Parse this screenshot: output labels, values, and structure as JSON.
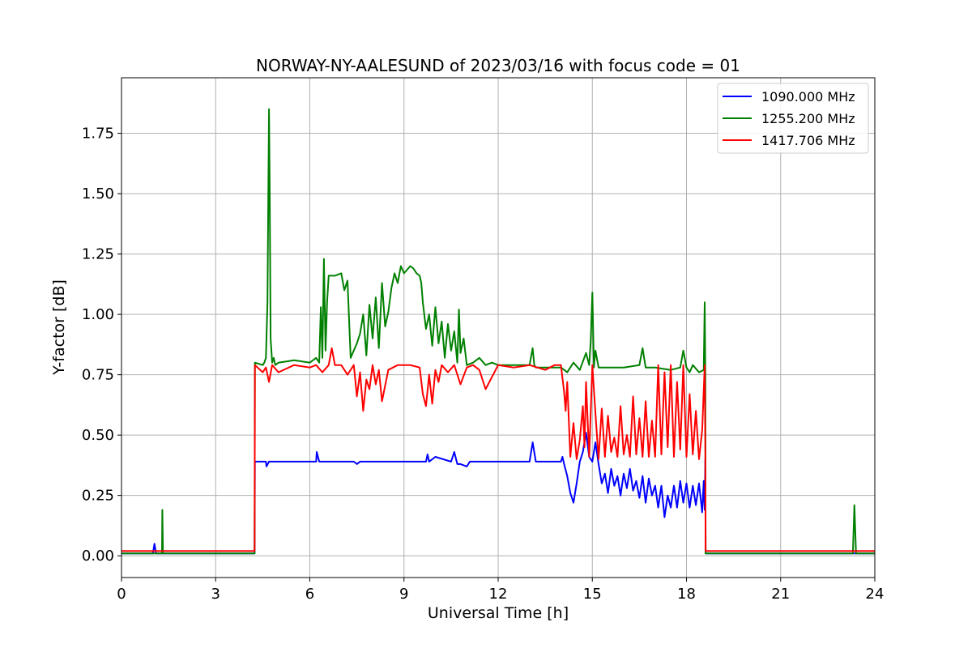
{
  "chart_data": {
    "type": "line",
    "title": "NORWAY-NY-AALESUND of 2023/03/16 with focus code = 01",
    "xlabel": "Universal Time [h]",
    "ylabel": "Y-factor [dB]",
    "xlim": [
      0,
      24
    ],
    "ylim": [
      -0.09,
      1.98
    ],
    "xticks": [
      0,
      3,
      6,
      9,
      12,
      15,
      18,
      21,
      24
    ],
    "xtick_labels": [
      "0",
      "3",
      "6",
      "9",
      "12",
      "15",
      "18",
      "21",
      "24"
    ],
    "yticks": [
      0.0,
      0.25,
      0.5,
      0.75,
      1.0,
      1.25,
      1.5,
      1.75
    ],
    "ytick_labels": [
      "0.00",
      "0.25",
      "0.50",
      "0.75",
      "1.00",
      "1.25",
      "1.50",
      "1.75"
    ],
    "grid": true,
    "legend_position": "top-right",
    "series": [
      {
        "name": "1090.000 MHz",
        "color": "#0000ff",
        "x": [
          0,
          0.5,
          1.0,
          1.05,
          1.1,
          1.2,
          2.0,
          3.0,
          3.9,
          4.0,
          4.24,
          4.25,
          4.5,
          4.6,
          4.62,
          4.7,
          6.0,
          6.2,
          6.22,
          6.3,
          7.4,
          7.5,
          7.6,
          9.0,
          9.7,
          9.75,
          9.8,
          10.0,
          10.5,
          10.6,
          10.7,
          10.8,
          11.0,
          11.1,
          12.0,
          13.0,
          13.1,
          13.2,
          13.5,
          14.0,
          14.05,
          14.1,
          14.2,
          14.3,
          14.4,
          14.5,
          14.6,
          14.7,
          14.8,
          14.9,
          15.0,
          15.1,
          15.2,
          15.3,
          15.4,
          15.5,
          15.6,
          15.7,
          15.8,
          15.9,
          16.0,
          16.1,
          16.2,
          16.3,
          16.4,
          16.5,
          16.6,
          16.7,
          16.8,
          16.9,
          17.0,
          17.1,
          17.2,
          17.3,
          17.4,
          17.5,
          17.6,
          17.7,
          17.8,
          17.9,
          18.0,
          18.1,
          18.2,
          18.3,
          18.4,
          18.5,
          18.55,
          18.58,
          18.6,
          18.61,
          19.0,
          21.0,
          24.0
        ],
        "y": [
          0.01,
          0.01,
          0.01,
          0.05,
          0.01,
          0.01,
          0.01,
          0.01,
          0.01,
          0.01,
          0.01,
          0.39,
          0.39,
          0.39,
          0.37,
          0.39,
          0.39,
          0.39,
          0.43,
          0.39,
          0.39,
          0.38,
          0.39,
          0.39,
          0.39,
          0.42,
          0.39,
          0.41,
          0.39,
          0.43,
          0.38,
          0.38,
          0.37,
          0.39,
          0.39,
          0.39,
          0.47,
          0.39,
          0.39,
          0.39,
          0.41,
          0.38,
          0.33,
          0.26,
          0.22,
          0.3,
          0.39,
          0.43,
          0.51,
          0.41,
          0.39,
          0.47,
          0.38,
          0.3,
          0.34,
          0.26,
          0.36,
          0.29,
          0.33,
          0.25,
          0.34,
          0.28,
          0.36,
          0.27,
          0.31,
          0.24,
          0.33,
          0.22,
          0.32,
          0.25,
          0.29,
          0.2,
          0.29,
          0.16,
          0.25,
          0.2,
          0.29,
          0.2,
          0.31,
          0.22,
          0.3,
          0.2,
          0.29,
          0.21,
          0.3,
          0.18,
          0.31,
          0.19,
          0.4,
          0.01,
          0.01,
          0.01,
          0.01
        ]
      },
      {
        "name": "1255.200 MHz",
        "color": "#008000",
        "x": [
          0,
          1.0,
          1.29,
          1.3,
          1.32,
          1.4,
          3.0,
          4.0,
          4.24,
          4.25,
          4.5,
          4.55,
          4.6,
          4.65,
          4.7,
          4.72,
          4.75,
          4.8,
          4.85,
          4.9,
          5.0,
          5.5,
          6.0,
          6.2,
          6.3,
          6.35,
          6.4,
          6.45,
          6.5,
          6.55,
          6.6,
          6.8,
          7.0,
          7.1,
          7.2,
          7.3,
          7.5,
          7.6,
          7.7,
          7.8,
          7.9,
          8.0,
          8.1,
          8.2,
          8.3,
          8.4,
          8.5,
          8.6,
          8.7,
          8.8,
          8.9,
          9.0,
          9.2,
          9.3,
          9.4,
          9.5,
          9.55,
          9.6,
          9.7,
          9.8,
          9.9,
          10.0,
          10.1,
          10.2,
          10.3,
          10.4,
          10.5,
          10.6,
          10.7,
          10.75,
          10.8,
          10.9,
          11.0,
          11.2,
          11.4,
          11.6,
          11.8,
          12.0,
          12.5,
          13.0,
          13.1,
          13.15,
          13.2,
          13.5,
          14.0,
          14.2,
          14.4,
          14.6,
          14.8,
          14.9,
          14.95,
          15.0,
          15.05,
          15.1,
          15.2,
          15.5,
          16.0,
          16.5,
          16.6,
          16.7,
          17.0,
          17.5,
          17.8,
          17.9,
          18.0,
          18.1,
          18.2,
          18.4,
          18.55,
          18.58,
          18.6,
          18.61,
          19.0,
          21.0,
          23.3,
          23.35,
          23.4,
          24.0
        ],
        "y": [
          0.01,
          0.01,
          0.01,
          0.19,
          0.01,
          0.01,
          0.01,
          0.01,
          0.01,
          0.8,
          0.79,
          0.8,
          0.82,
          1.05,
          1.85,
          1.55,
          0.9,
          0.8,
          0.82,
          0.79,
          0.8,
          0.81,
          0.8,
          0.82,
          0.8,
          1.03,
          0.82,
          1.23,
          0.85,
          1.05,
          1.16,
          1.16,
          1.17,
          1.1,
          1.14,
          0.82,
          0.88,
          0.92,
          1.0,
          0.83,
          1.04,
          0.9,
          1.07,
          0.86,
          1.13,
          0.95,
          1.01,
          1.11,
          1.17,
          1.13,
          1.2,
          1.17,
          1.2,
          1.19,
          1.17,
          1.16,
          1.13,
          1.05,
          0.94,
          1.0,
          0.87,
          1.03,
          0.88,
          0.97,
          0.82,
          0.96,
          0.85,
          0.93,
          0.8,
          1.02,
          0.84,
          0.9,
          0.79,
          0.8,
          0.82,
          0.79,
          0.8,
          0.79,
          0.79,
          0.79,
          0.86,
          0.79,
          0.78,
          0.78,
          0.78,
          0.76,
          0.8,
          0.77,
          0.84,
          0.79,
          0.89,
          1.09,
          0.78,
          0.85,
          0.78,
          0.78,
          0.78,
          0.79,
          0.86,
          0.78,
          0.78,
          0.77,
          0.78,
          0.85,
          0.78,
          0.76,
          0.79,
          0.76,
          0.77,
          1.05,
          0.75,
          0.01,
          0.01,
          0.01,
          0.01,
          0.21,
          0.01,
          0.01
        ]
      },
      {
        "name": "1417.706 MHz",
        "color": "#ff0000",
        "x": [
          0,
          1.0,
          2.0,
          3.0,
          4.0,
          4.24,
          4.25,
          4.5,
          4.6,
          4.7,
          4.8,
          5.0,
          5.5,
          6.0,
          6.2,
          6.4,
          6.6,
          6.7,
          6.8,
          7.0,
          7.2,
          7.4,
          7.5,
          7.6,
          7.7,
          7.8,
          7.9,
          8.0,
          8.1,
          8.2,
          8.3,
          8.5,
          8.8,
          9.2,
          9.5,
          9.6,
          9.7,
          9.8,
          9.9,
          10.0,
          10.1,
          10.2,
          10.4,
          10.6,
          10.8,
          11.0,
          11.2,
          11.4,
          11.6,
          12.0,
          12.5,
          13.0,
          13.5,
          13.8,
          14.0,
          14.1,
          14.15,
          14.2,
          14.3,
          14.4,
          14.5,
          14.6,
          14.7,
          14.75,
          14.8,
          14.9,
          15.0,
          15.1,
          15.2,
          15.3,
          15.4,
          15.5,
          15.6,
          15.7,
          15.8,
          15.9,
          16.0,
          16.1,
          16.2,
          16.3,
          16.4,
          16.5,
          16.6,
          16.7,
          16.8,
          16.9,
          17.0,
          17.1,
          17.2,
          17.3,
          17.4,
          17.5,
          17.6,
          17.7,
          17.8,
          17.9,
          18.0,
          18.1,
          18.2,
          18.3,
          18.4,
          18.5,
          18.58,
          18.6,
          18.61,
          19.0,
          21.0,
          24.0
        ],
        "y": [
          0.02,
          0.02,
          0.02,
          0.02,
          0.02,
          0.02,
          0.79,
          0.76,
          0.78,
          0.72,
          0.79,
          0.76,
          0.79,
          0.78,
          0.79,
          0.76,
          0.79,
          0.86,
          0.79,
          0.79,
          0.75,
          0.79,
          0.66,
          0.76,
          0.6,
          0.73,
          0.69,
          0.79,
          0.71,
          0.77,
          0.64,
          0.77,
          0.79,
          0.79,
          0.78,
          0.67,
          0.62,
          0.75,
          0.63,
          0.77,
          0.72,
          0.79,
          0.76,
          0.79,
          0.71,
          0.78,
          0.79,
          0.77,
          0.69,
          0.79,
          0.78,
          0.79,
          0.77,
          0.79,
          0.79,
          0.68,
          0.6,
          0.72,
          0.41,
          0.55,
          0.4,
          0.48,
          0.62,
          0.45,
          0.72,
          0.41,
          0.79,
          0.59,
          0.4,
          0.61,
          0.41,
          0.58,
          0.43,
          0.49,
          0.41,
          0.62,
          0.42,
          0.5,
          0.41,
          0.66,
          0.42,
          0.57,
          0.41,
          0.64,
          0.41,
          0.56,
          0.41,
          0.79,
          0.42,
          0.76,
          0.45,
          0.79,
          0.41,
          0.72,
          0.44,
          0.79,
          0.41,
          0.67,
          0.42,
          0.6,
          0.4,
          0.52,
          0.79,
          0.41,
          0.02,
          0.02,
          0.02,
          0.02
        ]
      }
    ]
  }
}
